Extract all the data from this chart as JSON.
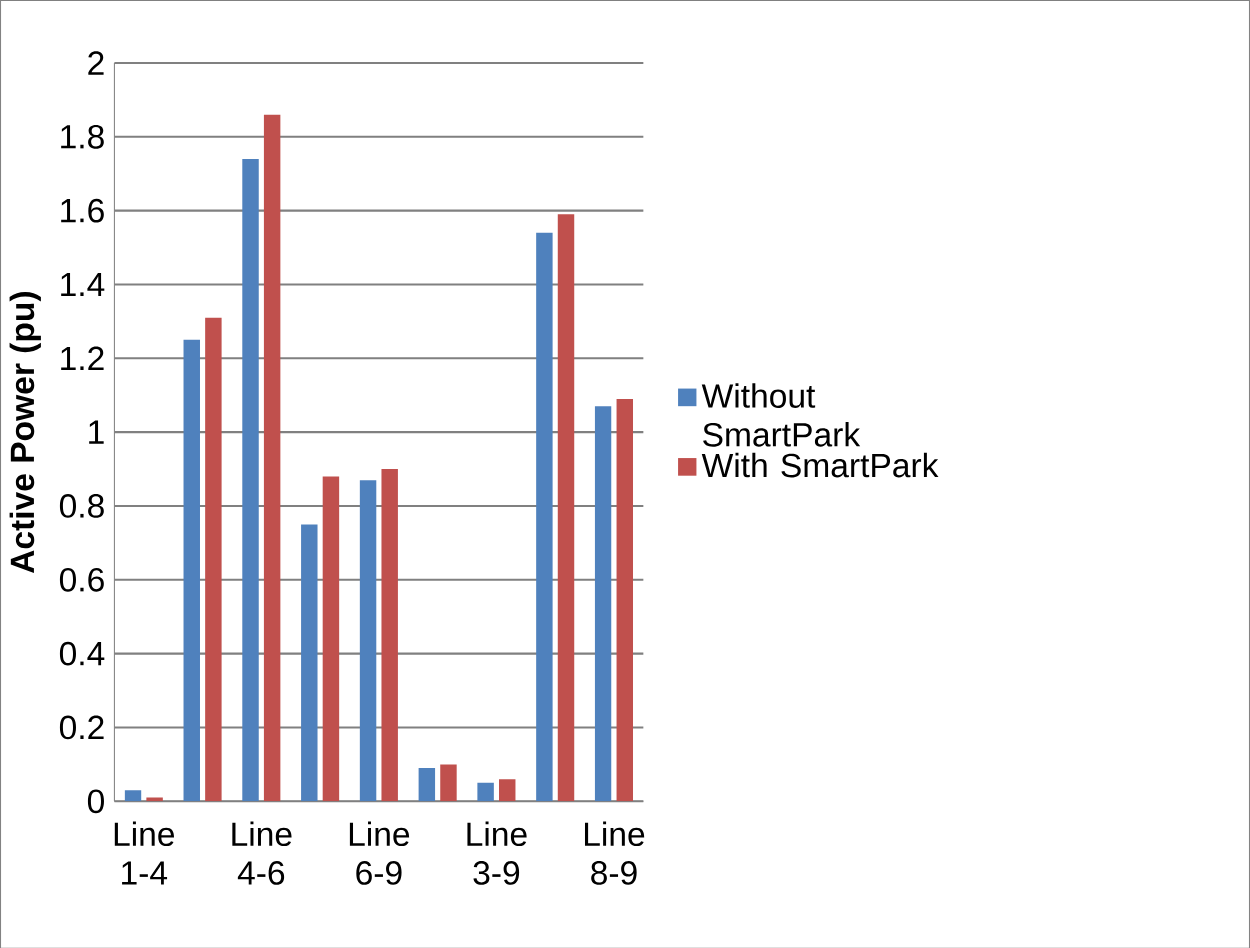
{
  "chart_data": {
    "type": "bar",
    "ylabel": "Active Power (pu)",
    "categories": [
      "Line 1-4",
      null,
      "Line 4-6",
      null,
      "Line 6-9",
      null,
      "Line 3-9",
      null,
      "Line 8-9"
    ],
    "series": [
      {
        "name": "Without SmartPark",
        "color": "#4f81bd",
        "values": [
          0.03,
          1.25,
          1.74,
          0.75,
          0.87,
          0.09,
          0.05,
          1.54,
          1.07
        ]
      },
      {
        "name": "With SmartPark",
        "color": "#c0504d",
        "values": [
          0.01,
          1.31,
          1.86,
          0.88,
          0.9,
          0.1,
          0.06,
          1.59,
          1.09
        ]
      }
    ],
    "ylim": [
      0,
      2
    ],
    "yticks": [
      0,
      0.2,
      0.4,
      0.6,
      0.8,
      1,
      1.2,
      1.4,
      1.6,
      1.8,
      2
    ],
    "grid": "y",
    "legend": "right"
  }
}
